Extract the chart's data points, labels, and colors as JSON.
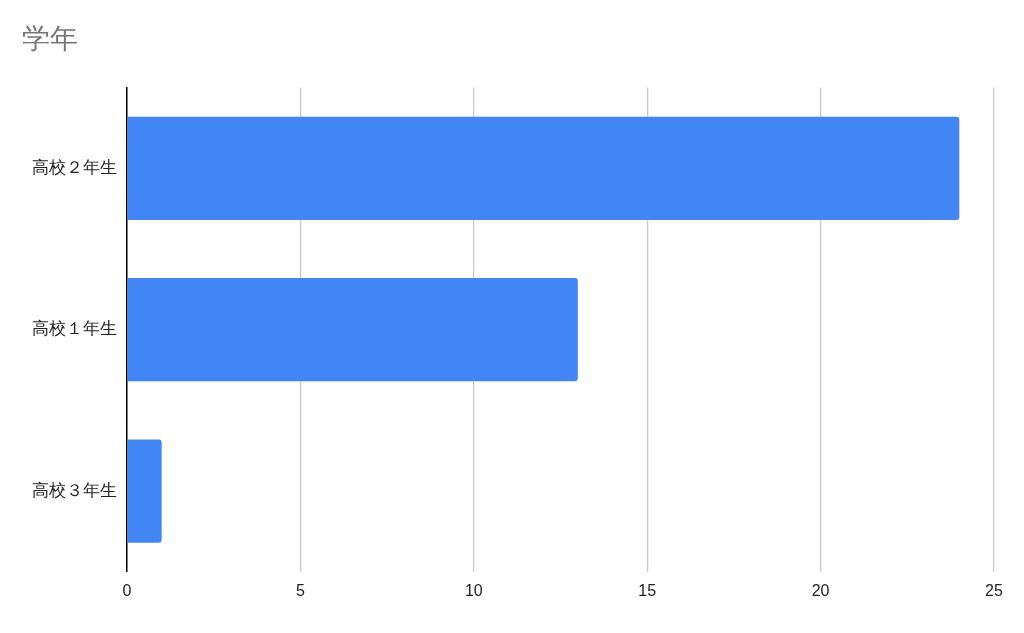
{
  "chart_data": {
    "type": "bar",
    "title": "学年",
    "orientation": "horizontal",
    "categories": [
      "高校２年生",
      "高校１年生",
      "高校３年生"
    ],
    "values": [
      24,
      13,
      1
    ],
    "color": "#4285f4",
    "xlim": [
      0,
      25
    ],
    "xticks": [
      0,
      5,
      10,
      15,
      20,
      25
    ],
    "grid": "x"
  }
}
